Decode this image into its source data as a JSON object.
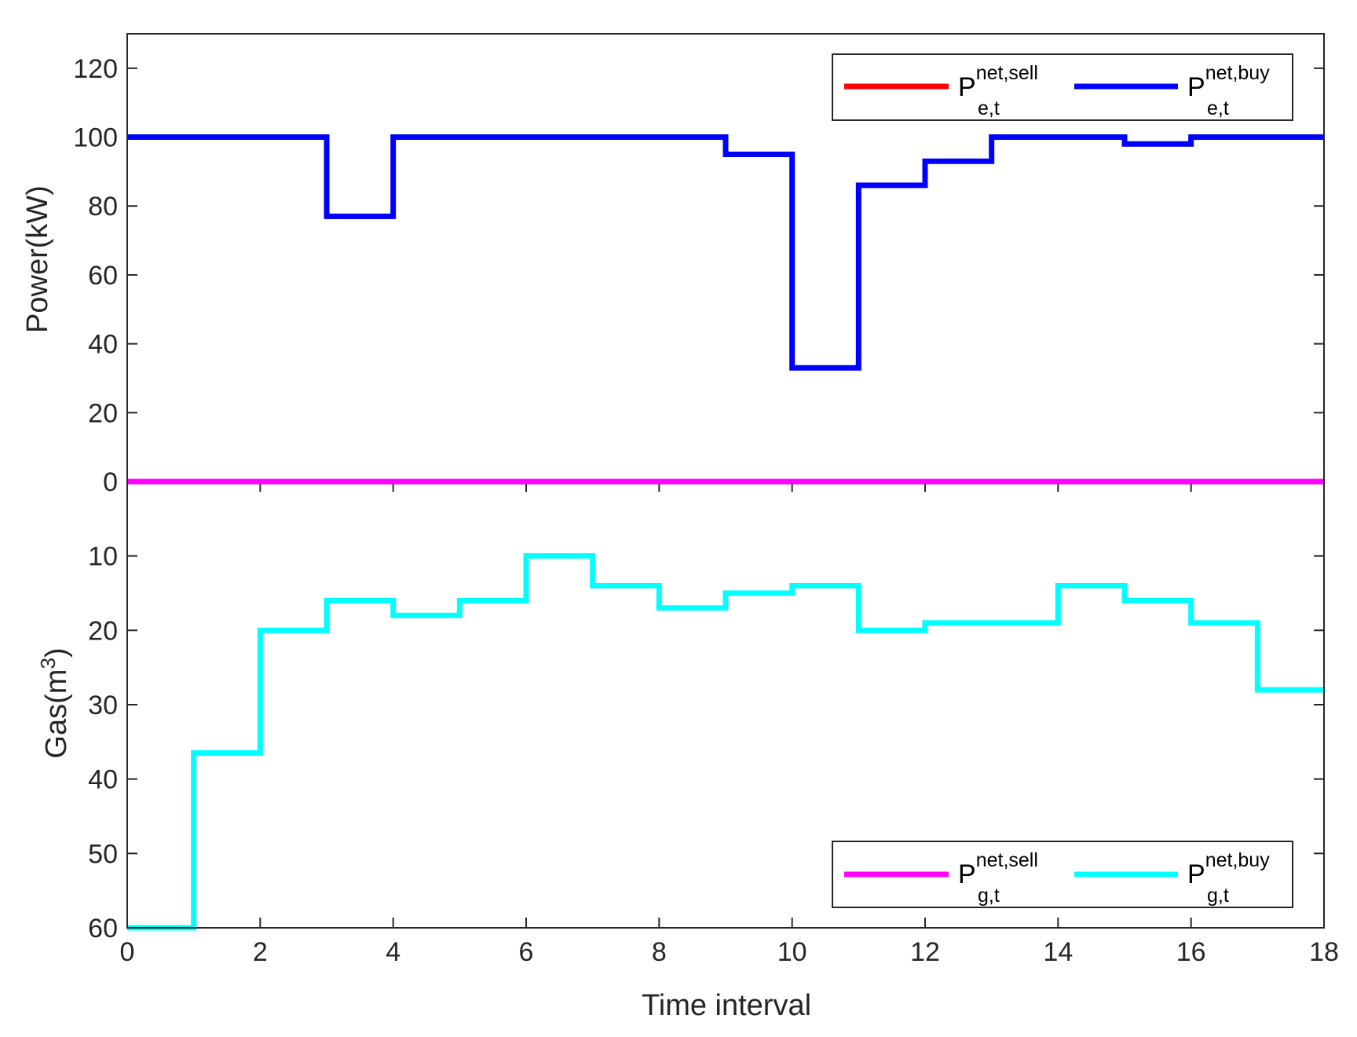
{
  "chart_data": {
    "type": "line",
    "step": "post",
    "xlabel": "Time interval",
    "xlim": [
      0,
      18
    ],
    "xticks": [
      "0",
      "2",
      "4",
      "6",
      "8",
      "10",
      "12",
      "14",
      "16",
      "18"
    ],
    "x": [
      0,
      1,
      2,
      3,
      4,
      5,
      6,
      7,
      8,
      9,
      10,
      11,
      12,
      13,
      14,
      15,
      16,
      17,
      18
    ],
    "panels": [
      {
        "id": "power",
        "ylabel": "Power(kW)",
        "ylim": [
          0,
          130
        ],
        "yticks": [
          "0",
          "20",
          "40",
          "60",
          "80",
          "100",
          "120"
        ],
        "legend_position": "top-right",
        "series": [
          {
            "name": "P_{e,t}^{net,sell}",
            "base": "P",
            "sup": "net,sell",
            "sub": "e,t",
            "color": "#ff0000",
            "values": [
              0,
              0,
              0,
              0,
              0,
              0,
              0,
              0,
              0,
              0,
              0,
              0,
              0,
              0,
              0,
              0,
              0,
              0,
              0
            ]
          },
          {
            "name": "P_{e,t}^{net,buy}",
            "base": "P",
            "sup": "net,buy",
            "sub": "e,t",
            "color": "#0000ff",
            "values": [
              100,
              100,
              100,
              77,
              100,
              100,
              100,
              100,
              100,
              95,
              33,
              86,
              93,
              100,
              100,
              98,
              100,
              100,
              100
            ]
          }
        ]
      },
      {
        "id": "gas",
        "ylabel": "Gas(m",
        "ylabel_sup": "3",
        "ylabel_end": ")",
        "ylim": [
          60,
          0
        ],
        "reversed": true,
        "yticks": [
          "10",
          "20",
          "30",
          "40",
          "50",
          "60"
        ],
        "legend_position": "bottom-right",
        "series": [
          {
            "name": "P_{g,t}^{net,sell}",
            "base": "P",
            "sup": "net,sell",
            "sub": "g,t",
            "color": "#ff00ff",
            "values": [
              0,
              0,
              0,
              0,
              0,
              0,
              0,
              0,
              0,
              0,
              0,
              0,
              0,
              0,
              0,
              0,
              0,
              0,
              0
            ]
          },
          {
            "name": "P_{g,t}^{net,buy}",
            "base": "P",
            "sup": "net,buy",
            "sub": "g,t",
            "color": "#00ffff",
            "values": [
              60,
              36.5,
              20,
              16,
              18,
              16,
              10,
              14,
              17,
              15,
              14,
              20,
              19,
              19,
              14,
              16,
              19,
              28,
              28
            ]
          }
        ]
      }
    ]
  }
}
